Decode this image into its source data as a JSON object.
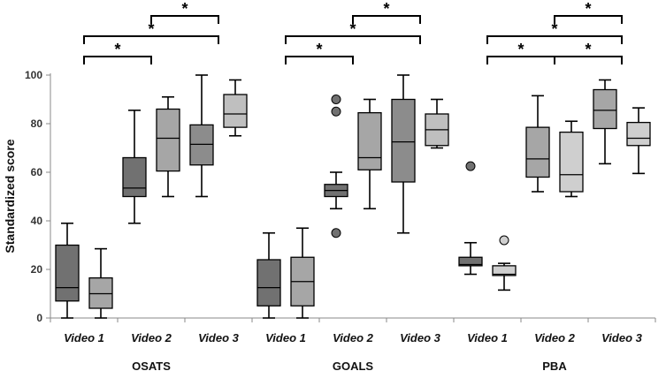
{
  "chart_data": {
    "type": "box",
    "ylabel": "Standardized score",
    "ylim": [
      0,
      100
    ],
    "yticks": [
      0,
      20,
      40,
      60,
      80,
      100
    ],
    "grid": false,
    "groups": [
      {
        "name": "OSATS",
        "boxes": [
          {
            "label": "Video 1",
            "whisker_low": 0,
            "q1": 7,
            "median": 12.5,
            "q3": 30,
            "whisker_high": 39,
            "color": "#717171",
            "outliers": []
          },
          {
            "label": "Video 1",
            "whisker_low": 0,
            "q1": 4,
            "median": 10,
            "q3": 16.5,
            "whisker_high": 28.5,
            "color": "#a6a6a6",
            "outliers": []
          },
          {
            "label": "Video 2",
            "whisker_low": 39,
            "q1": 50,
            "median": 53.5,
            "q3": 66,
            "whisker_high": 85.5,
            "color": "#717171",
            "outliers": []
          },
          {
            "label": "Video 2",
            "whisker_low": 50,
            "q1": 60.5,
            "median": 74,
            "q3": 86,
            "whisker_high": 91,
            "color": "#a6a6a6",
            "outliers": []
          },
          {
            "label": "Video 3",
            "whisker_low": 50,
            "q1": 63,
            "median": 71.5,
            "q3": 79.5,
            "whisker_high": 100,
            "color": "#8c8c8c",
            "outliers": []
          },
          {
            "label": "Video 3",
            "whisker_low": 75,
            "q1": 78.5,
            "median": 84,
            "q3": 92,
            "whisker_high": 98,
            "color": "#bfbfbf",
            "outliers": []
          }
        ]
      },
      {
        "name": "GOALS",
        "boxes": [
          {
            "label": "Video 1",
            "whisker_low": 0,
            "q1": 5,
            "median": 12.5,
            "q3": 24,
            "whisker_high": 35,
            "color": "#717171",
            "outliers": []
          },
          {
            "label": "Video 1",
            "whisker_low": 0,
            "q1": 5,
            "median": 15,
            "q3": 25,
            "whisker_high": 37,
            "color": "#a6a6a6",
            "outliers": []
          },
          {
            "label": "Video 2",
            "whisker_low": 45,
            "q1": 50,
            "median": 52.5,
            "q3": 55,
            "whisker_high": 60,
            "color": "#717171",
            "outliers": [
              90,
              85,
              35
            ]
          },
          {
            "label": "Video 2",
            "whisker_low": 45,
            "q1": 61,
            "median": 66,
            "q3": 84.5,
            "whisker_high": 90,
            "color": "#a6a6a6",
            "outliers": []
          },
          {
            "label": "Video 3",
            "whisker_low": 35,
            "q1": 56,
            "median": 72.5,
            "q3": 90,
            "whisker_high": 100,
            "color": "#8c8c8c",
            "outliers": []
          },
          {
            "label": "Video 3",
            "whisker_low": 70,
            "q1": 71,
            "median": 77.5,
            "q3": 84,
            "whisker_high": 90,
            "color": "#bfbfbf",
            "outliers": []
          }
        ]
      },
      {
        "name": "PBA",
        "boxes": [
          {
            "label": "Video 1",
            "whisker_low": 18,
            "q1": 21.5,
            "median": 22,
            "q3": 25,
            "whisker_high": 31,
            "color": "#717171",
            "outliers": [
              62.5
            ]
          },
          {
            "label": "Video 1",
            "whisker_low": 11.5,
            "q1": 17.5,
            "median": 18,
            "q3": 21.5,
            "whisker_high": 22.5,
            "color": "#cfcfcf",
            "outliers": [
              32
            ]
          },
          {
            "label": "Video 2",
            "whisker_low": 52,
            "q1": 58,
            "median": 65.5,
            "q3": 78.5,
            "whisker_high": 91.5,
            "color": "#a6a6a6",
            "outliers": []
          },
          {
            "label": "Video 2",
            "whisker_low": 50,
            "q1": 52,
            "median": 59,
            "q3": 76.5,
            "whisker_high": 81,
            "color": "#cfcfcf",
            "outliers": []
          },
          {
            "label": "Video 3",
            "whisker_low": 63.5,
            "q1": 78,
            "median": 85.5,
            "q3": 94,
            "whisker_high": 98,
            "color": "#a6a6a6",
            "outliers": []
          },
          {
            "label": "Video 3",
            "whisker_low": 59.5,
            "q1": 71,
            "median": 74,
            "q3": 80.5,
            "whisker_high": 86.5,
            "color": "#cfcfcf",
            "outliers": []
          }
        ]
      }
    ],
    "significance": [
      {
        "group": "OSATS",
        "from": "Video 1",
        "to": "Video 2",
        "symbol": "*"
      },
      {
        "group": "OSATS",
        "from": "Video 1",
        "to": "Video 3",
        "symbol": "*"
      },
      {
        "group": "OSATS",
        "from": "Video 2",
        "to": "Video 3",
        "symbol": "*"
      },
      {
        "group": "GOALS",
        "from": "Video 1",
        "to": "Video 2",
        "symbol": "*"
      },
      {
        "group": "GOALS",
        "from": "Video 1",
        "to": "Video 3",
        "symbol": "*"
      },
      {
        "group": "GOALS",
        "from": "Video 2",
        "to": "Video 3",
        "symbol": "*"
      },
      {
        "group": "PBA",
        "from": "Video 1",
        "to": "Video 2",
        "symbol": "*"
      },
      {
        "group": "PBA",
        "from": "Video 2",
        "to": "Video 3",
        "symbol": "*"
      },
      {
        "group": "PBA",
        "from": "Video 1",
        "to": "Video 3",
        "symbol": "*"
      },
      {
        "group": "PBA",
        "from": "Video 2",
        "to": "Video 3",
        "symbol": "*"
      }
    ]
  }
}
